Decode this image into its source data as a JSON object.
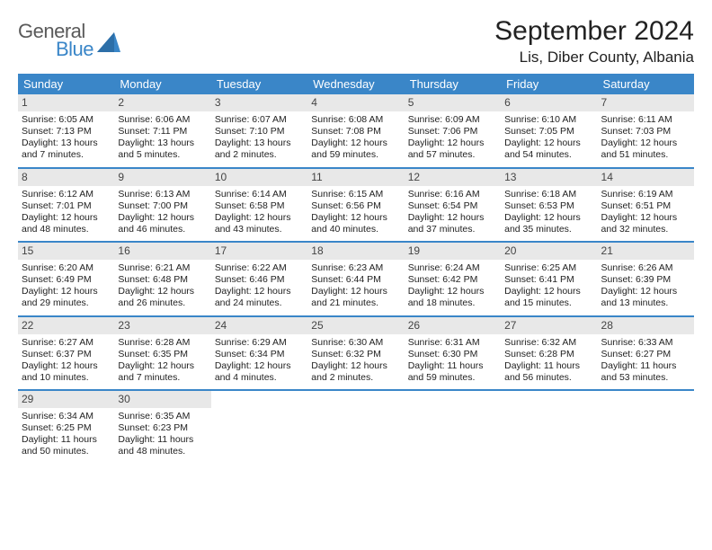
{
  "logo": {
    "line1": "General",
    "line2": "Blue"
  },
  "title": "September 2024",
  "location": "Lis, Diber County, Albania",
  "colors": {
    "header_bg": "#3a86c8",
    "header_text": "#ffffff",
    "daynum_bg": "#e8e8e8",
    "row_border": "#3a86c8",
    "logo_gray": "#5a5a5a",
    "logo_blue": "#3a86c8"
  },
  "days_of_week": [
    "Sunday",
    "Monday",
    "Tuesday",
    "Wednesday",
    "Thursday",
    "Friday",
    "Saturday"
  ],
  "weeks": [
    [
      {
        "n": "1",
        "sunrise": "6:05 AM",
        "sunset": "7:13 PM",
        "daylight": "13 hours and 7 minutes."
      },
      {
        "n": "2",
        "sunrise": "6:06 AM",
        "sunset": "7:11 PM",
        "daylight": "13 hours and 5 minutes."
      },
      {
        "n": "3",
        "sunrise": "6:07 AM",
        "sunset": "7:10 PM",
        "daylight": "13 hours and 2 minutes."
      },
      {
        "n": "4",
        "sunrise": "6:08 AM",
        "sunset": "7:08 PM",
        "daylight": "12 hours and 59 minutes."
      },
      {
        "n": "5",
        "sunrise": "6:09 AM",
        "sunset": "7:06 PM",
        "daylight": "12 hours and 57 minutes."
      },
      {
        "n": "6",
        "sunrise": "6:10 AM",
        "sunset": "7:05 PM",
        "daylight": "12 hours and 54 minutes."
      },
      {
        "n": "7",
        "sunrise": "6:11 AM",
        "sunset": "7:03 PM",
        "daylight": "12 hours and 51 minutes."
      }
    ],
    [
      {
        "n": "8",
        "sunrise": "6:12 AM",
        "sunset": "7:01 PM",
        "daylight": "12 hours and 48 minutes."
      },
      {
        "n": "9",
        "sunrise": "6:13 AM",
        "sunset": "7:00 PM",
        "daylight": "12 hours and 46 minutes."
      },
      {
        "n": "10",
        "sunrise": "6:14 AM",
        "sunset": "6:58 PM",
        "daylight": "12 hours and 43 minutes."
      },
      {
        "n": "11",
        "sunrise": "6:15 AM",
        "sunset": "6:56 PM",
        "daylight": "12 hours and 40 minutes."
      },
      {
        "n": "12",
        "sunrise": "6:16 AM",
        "sunset": "6:54 PM",
        "daylight": "12 hours and 37 minutes."
      },
      {
        "n": "13",
        "sunrise": "6:18 AM",
        "sunset": "6:53 PM",
        "daylight": "12 hours and 35 minutes."
      },
      {
        "n": "14",
        "sunrise": "6:19 AM",
        "sunset": "6:51 PM",
        "daylight": "12 hours and 32 minutes."
      }
    ],
    [
      {
        "n": "15",
        "sunrise": "6:20 AM",
        "sunset": "6:49 PM",
        "daylight": "12 hours and 29 minutes."
      },
      {
        "n": "16",
        "sunrise": "6:21 AM",
        "sunset": "6:48 PM",
        "daylight": "12 hours and 26 minutes."
      },
      {
        "n": "17",
        "sunrise": "6:22 AM",
        "sunset": "6:46 PM",
        "daylight": "12 hours and 24 minutes."
      },
      {
        "n": "18",
        "sunrise": "6:23 AM",
        "sunset": "6:44 PM",
        "daylight": "12 hours and 21 minutes."
      },
      {
        "n": "19",
        "sunrise": "6:24 AM",
        "sunset": "6:42 PM",
        "daylight": "12 hours and 18 minutes."
      },
      {
        "n": "20",
        "sunrise": "6:25 AM",
        "sunset": "6:41 PM",
        "daylight": "12 hours and 15 minutes."
      },
      {
        "n": "21",
        "sunrise": "6:26 AM",
        "sunset": "6:39 PM",
        "daylight": "12 hours and 13 minutes."
      }
    ],
    [
      {
        "n": "22",
        "sunrise": "6:27 AM",
        "sunset": "6:37 PM",
        "daylight": "12 hours and 10 minutes."
      },
      {
        "n": "23",
        "sunrise": "6:28 AM",
        "sunset": "6:35 PM",
        "daylight": "12 hours and 7 minutes."
      },
      {
        "n": "24",
        "sunrise": "6:29 AM",
        "sunset": "6:34 PM",
        "daylight": "12 hours and 4 minutes."
      },
      {
        "n": "25",
        "sunrise": "6:30 AM",
        "sunset": "6:32 PM",
        "daylight": "12 hours and 2 minutes."
      },
      {
        "n": "26",
        "sunrise": "6:31 AM",
        "sunset": "6:30 PM",
        "daylight": "11 hours and 59 minutes."
      },
      {
        "n": "27",
        "sunrise": "6:32 AM",
        "sunset": "6:28 PM",
        "daylight": "11 hours and 56 minutes."
      },
      {
        "n": "28",
        "sunrise": "6:33 AM",
        "sunset": "6:27 PM",
        "daylight": "11 hours and 53 minutes."
      }
    ],
    [
      {
        "n": "29",
        "sunrise": "6:34 AM",
        "sunset": "6:25 PM",
        "daylight": "11 hours and 50 minutes."
      },
      {
        "n": "30",
        "sunrise": "6:35 AM",
        "sunset": "6:23 PM",
        "daylight": "11 hours and 48 minutes."
      },
      null,
      null,
      null,
      null,
      null
    ]
  ]
}
